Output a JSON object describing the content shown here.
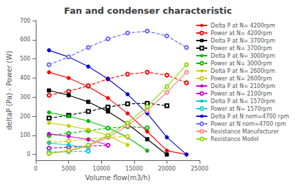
{
  "chart_data": {
    "type": "line",
    "title": "Fan and condenser characteristic",
    "xlabel": "Volume flow(m3/h)",
    "ylabel": "deltaP (Pa) - Power (W)",
    "xlim": [
      0,
      25000
    ],
    "xticks": [
      0,
      5000,
      10000,
      15000,
      20000,
      25000
    ],
    "ylim": [
      -30,
      700
    ],
    "yticks": [
      0,
      100,
      200,
      300,
      400,
      500,
      600,
      700
    ],
    "grid": false,
    "legend": "right",
    "series": [
      {
        "name": "Delta P at N= 4200rpm",
        "color": "#ff0000",
        "line_style": "solid",
        "marker": "circle",
        "x": [
          2000,
          5000,
          8000,
          11000,
          14000,
          17000,
          20000,
          23000
        ],
        "values": [
          430,
          400,
          355,
          295,
          215,
          120,
          20,
          0
        ]
      },
      {
        "name": "Power at N= 4200rpm",
        "color": "#ff0000",
        "line_style": "dashed",
        "marker": "emptyCircle",
        "x": [
          2000,
          5000,
          8000,
          11000,
          14000,
          17000,
          20000,
          23000
        ],
        "values": [
          310,
          330,
          360,
          395,
          420,
          430,
          415,
          375
        ]
      },
      {
        "name": "Delta P at N= 3700rpm",
        "color": "#000000",
        "line_style": "solid",
        "marker": "rect",
        "x": [
          2000,
          5000,
          8000,
          11000,
          14000,
          17000,
          20000
        ],
        "values": [
          335,
          310,
          275,
          225,
          160,
          80,
          0
        ]
      },
      {
        "name": "Power at N= 3700rpm",
        "color": "#000000",
        "line_style": "dashed",
        "marker": "emptyRect",
        "x": [
          2000,
          5000,
          8000,
          11000,
          14000,
          17000,
          20000
        ],
        "values": [
          190,
          205,
          225,
          248,
          265,
          268,
          255
        ]
      },
      {
        "name": "Delta P at N= 3000rpm",
        "color": "#00bb00",
        "line_style": "solid",
        "marker": "circle",
        "x": [
          2000,
          5000,
          8000,
          11000,
          14000,
          17000
        ],
        "values": [
          220,
          200,
          175,
          140,
          90,
          20
        ]
      },
      {
        "name": "Power at N= 3000rpm",
        "color": "#00bb00",
        "line_style": "dashed",
        "marker": "emptyCircle",
        "x": [
          2000,
          5000,
          8000,
          11000,
          14000,
          17000
        ],
        "values": [
          100,
          110,
          125,
          138,
          145,
          140
        ]
      },
      {
        "name": "Delta P at N= 2600rpm",
        "color": "#cccc00",
        "line_style": "solid",
        "marker": "circle",
        "x": [
          2000,
          5000,
          8000,
          11000,
          14000
        ],
        "values": [
          165,
          150,
          130,
          100,
          50
        ]
      },
      {
        "name": "Power at N= 2600rpm",
        "color": "#cccc00",
        "line_style": "dashed",
        "marker": "emptyCircle",
        "x": [
          2000,
          5000,
          8000,
          11000,
          14000
        ],
        "values": [
          63,
          70,
          80,
          90,
          95
        ]
      },
      {
        "name": "Delta P at N= 2100rpm",
        "color": "#cc00cc",
        "line_style": "solid",
        "marker": "circle",
        "x": [
          2000,
          5000,
          8000,
          11000
        ],
        "values": [
          108,
          95,
          78,
          50
        ]
      },
      {
        "name": "Power at N= 2100rpm",
        "color": "#cc00cc",
        "line_style": "dashed",
        "marker": "emptyCircle",
        "x": [
          2000,
          5000,
          8000,
          11000
        ],
        "values": [
          33,
          38,
          44,
          48
        ]
      },
      {
        "name": "Delta P at N= 1570rpm",
        "color": "#00cccc",
        "line_style": "solid",
        "marker": "circle",
        "x": [
          2000,
          5000,
          8000
        ],
        "values": [
          60,
          50,
          35
        ]
      },
      {
        "name": "Power at N= 1570rpm",
        "color": "#00cccc",
        "line_style": "dashed",
        "marker": "emptyCircle",
        "x": [
          2000,
          5000,
          8000
        ],
        "values": [
          13,
          15,
          18
        ]
      },
      {
        "name": "Delta P at N nom=4700 rpm",
        "color": "#0000dd",
        "line_style": "solid",
        "marker": "circle",
        "x": [
          2000,
          5000,
          8000,
          11000,
          14000,
          17000,
          20000,
          23000
        ],
        "values": [
          545,
          510,
          460,
          395,
          315,
          215,
          90,
          0
        ]
      },
      {
        "name": "Power at N nom=4700 rpm",
        "color": "#6666ff",
        "line_style": "dashed",
        "marker": "emptyCircle",
        "x": [
          2000,
          5000,
          8000,
          11000,
          14000,
          17000,
          20000,
          23000
        ],
        "values": [
          470,
          510,
          560,
          605,
          635,
          645,
          620,
          560
        ]
      },
      {
        "name": "Resistance Manufacturer",
        "color": "#ff8888",
        "line_style": "solid",
        "marker": "emptyCircle",
        "x": [
          2000,
          5000,
          8000,
          11000,
          14000,
          17000,
          20000,
          23000
        ],
        "values": [
          5,
          18,
          45,
          90,
          150,
          230,
          325,
          430
        ]
      },
      {
        "name": "Resistance Model",
        "color": "#88dd00",
        "line_style": "solid",
        "marker": "emptyCircle",
        "x": [
          2000,
          5000,
          8000,
          11000,
          14000,
          17000,
          20000,
          23000
        ],
        "values": [
          6,
          20,
          50,
          100,
          165,
          250,
          355,
          470
        ]
      }
    ]
  }
}
